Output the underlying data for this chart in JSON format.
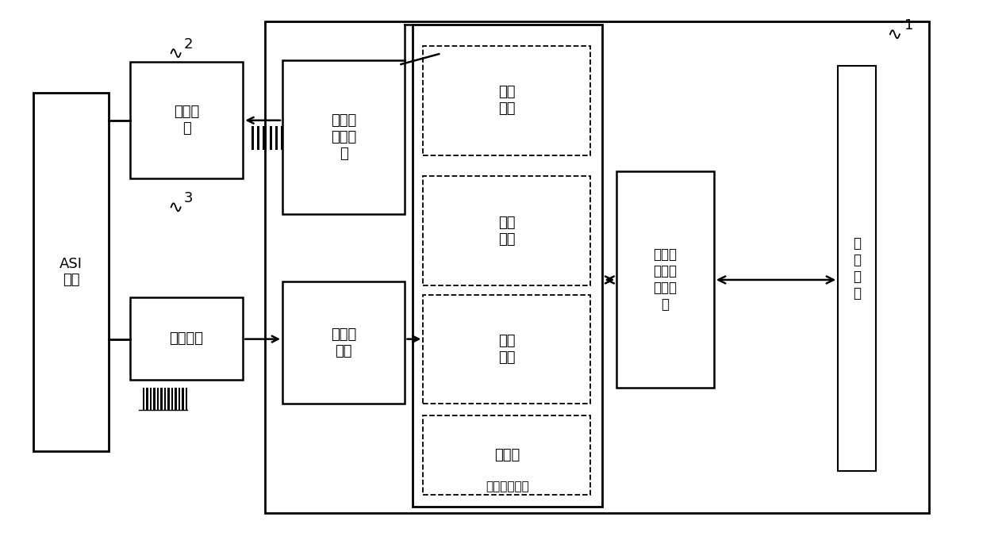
{
  "bg_color": "#ffffff",
  "line_color": "#000000",
  "asi_label": "ASI\n电源",
  "mod_label": "调制电\n路",
  "mod_ref": "2",
  "demod_label": "解调电路",
  "demod_ref": "3",
  "timer_ctrl_label": "定时器\n控制输\n出",
  "timer_cap_label": "定时器\n抓捕",
  "protocol_label": "协议处理模块",
  "fasong_label": "发送\n编码",
  "yingyong_label": "应用\n处理",
  "jieshou_label": "接收\n解码",
  "jiaoyan_label": "帧校验",
  "logic_label": "逻辑控\n制及状\n态机模\n块",
  "comm_label": "通\n信\n接\n口",
  "outer_ref": "1"
}
